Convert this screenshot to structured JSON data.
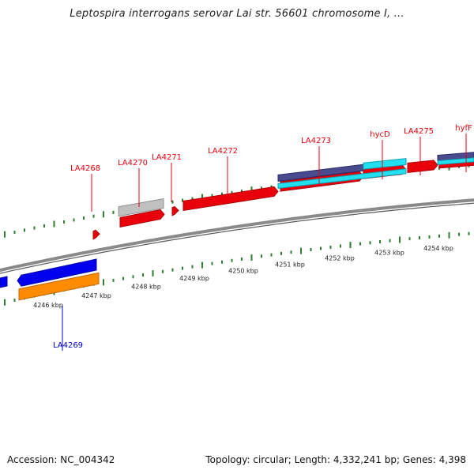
{
  "title": "Leptospira interrogans serovar Lai str. 56601 chromosome I, ...",
  "footer": {
    "accession": "Accession: NC_004342",
    "summary": "Topology: circular; Length: 4,332,241 bp; Genes: 4,398"
  },
  "colors": {
    "forward_gene_label": "#e8000b",
    "reverse_gene_label": "#0000cc",
    "backbone": "#8a8a8a",
    "tick": "#2e7d32"
  },
  "kbp_ticks": [
    "4246 kbp",
    "4247 kbp",
    "4248 kbp",
    "4249 kbp",
    "4250 kbp",
    "4251 kbp",
    "4252 kbp",
    "4253 kbp",
    "4254 kbp"
  ],
  "gene_labels": [
    {
      "name": "LA4268",
      "strand": "forward"
    },
    {
      "name": "LA4269",
      "strand": "reverse"
    },
    {
      "name": "LA4270",
      "strand": "forward"
    },
    {
      "name": "LA4271",
      "strand": "forward"
    },
    {
      "name": "LA4272",
      "strand": "forward"
    },
    {
      "name": "LA4273",
      "strand": "forward"
    },
    {
      "name": "hycD",
      "strand": "forward"
    },
    {
      "name": "LA4275",
      "strand": "forward"
    },
    {
      "name": "hyfF",
      "strand": "forward"
    }
  ]
}
